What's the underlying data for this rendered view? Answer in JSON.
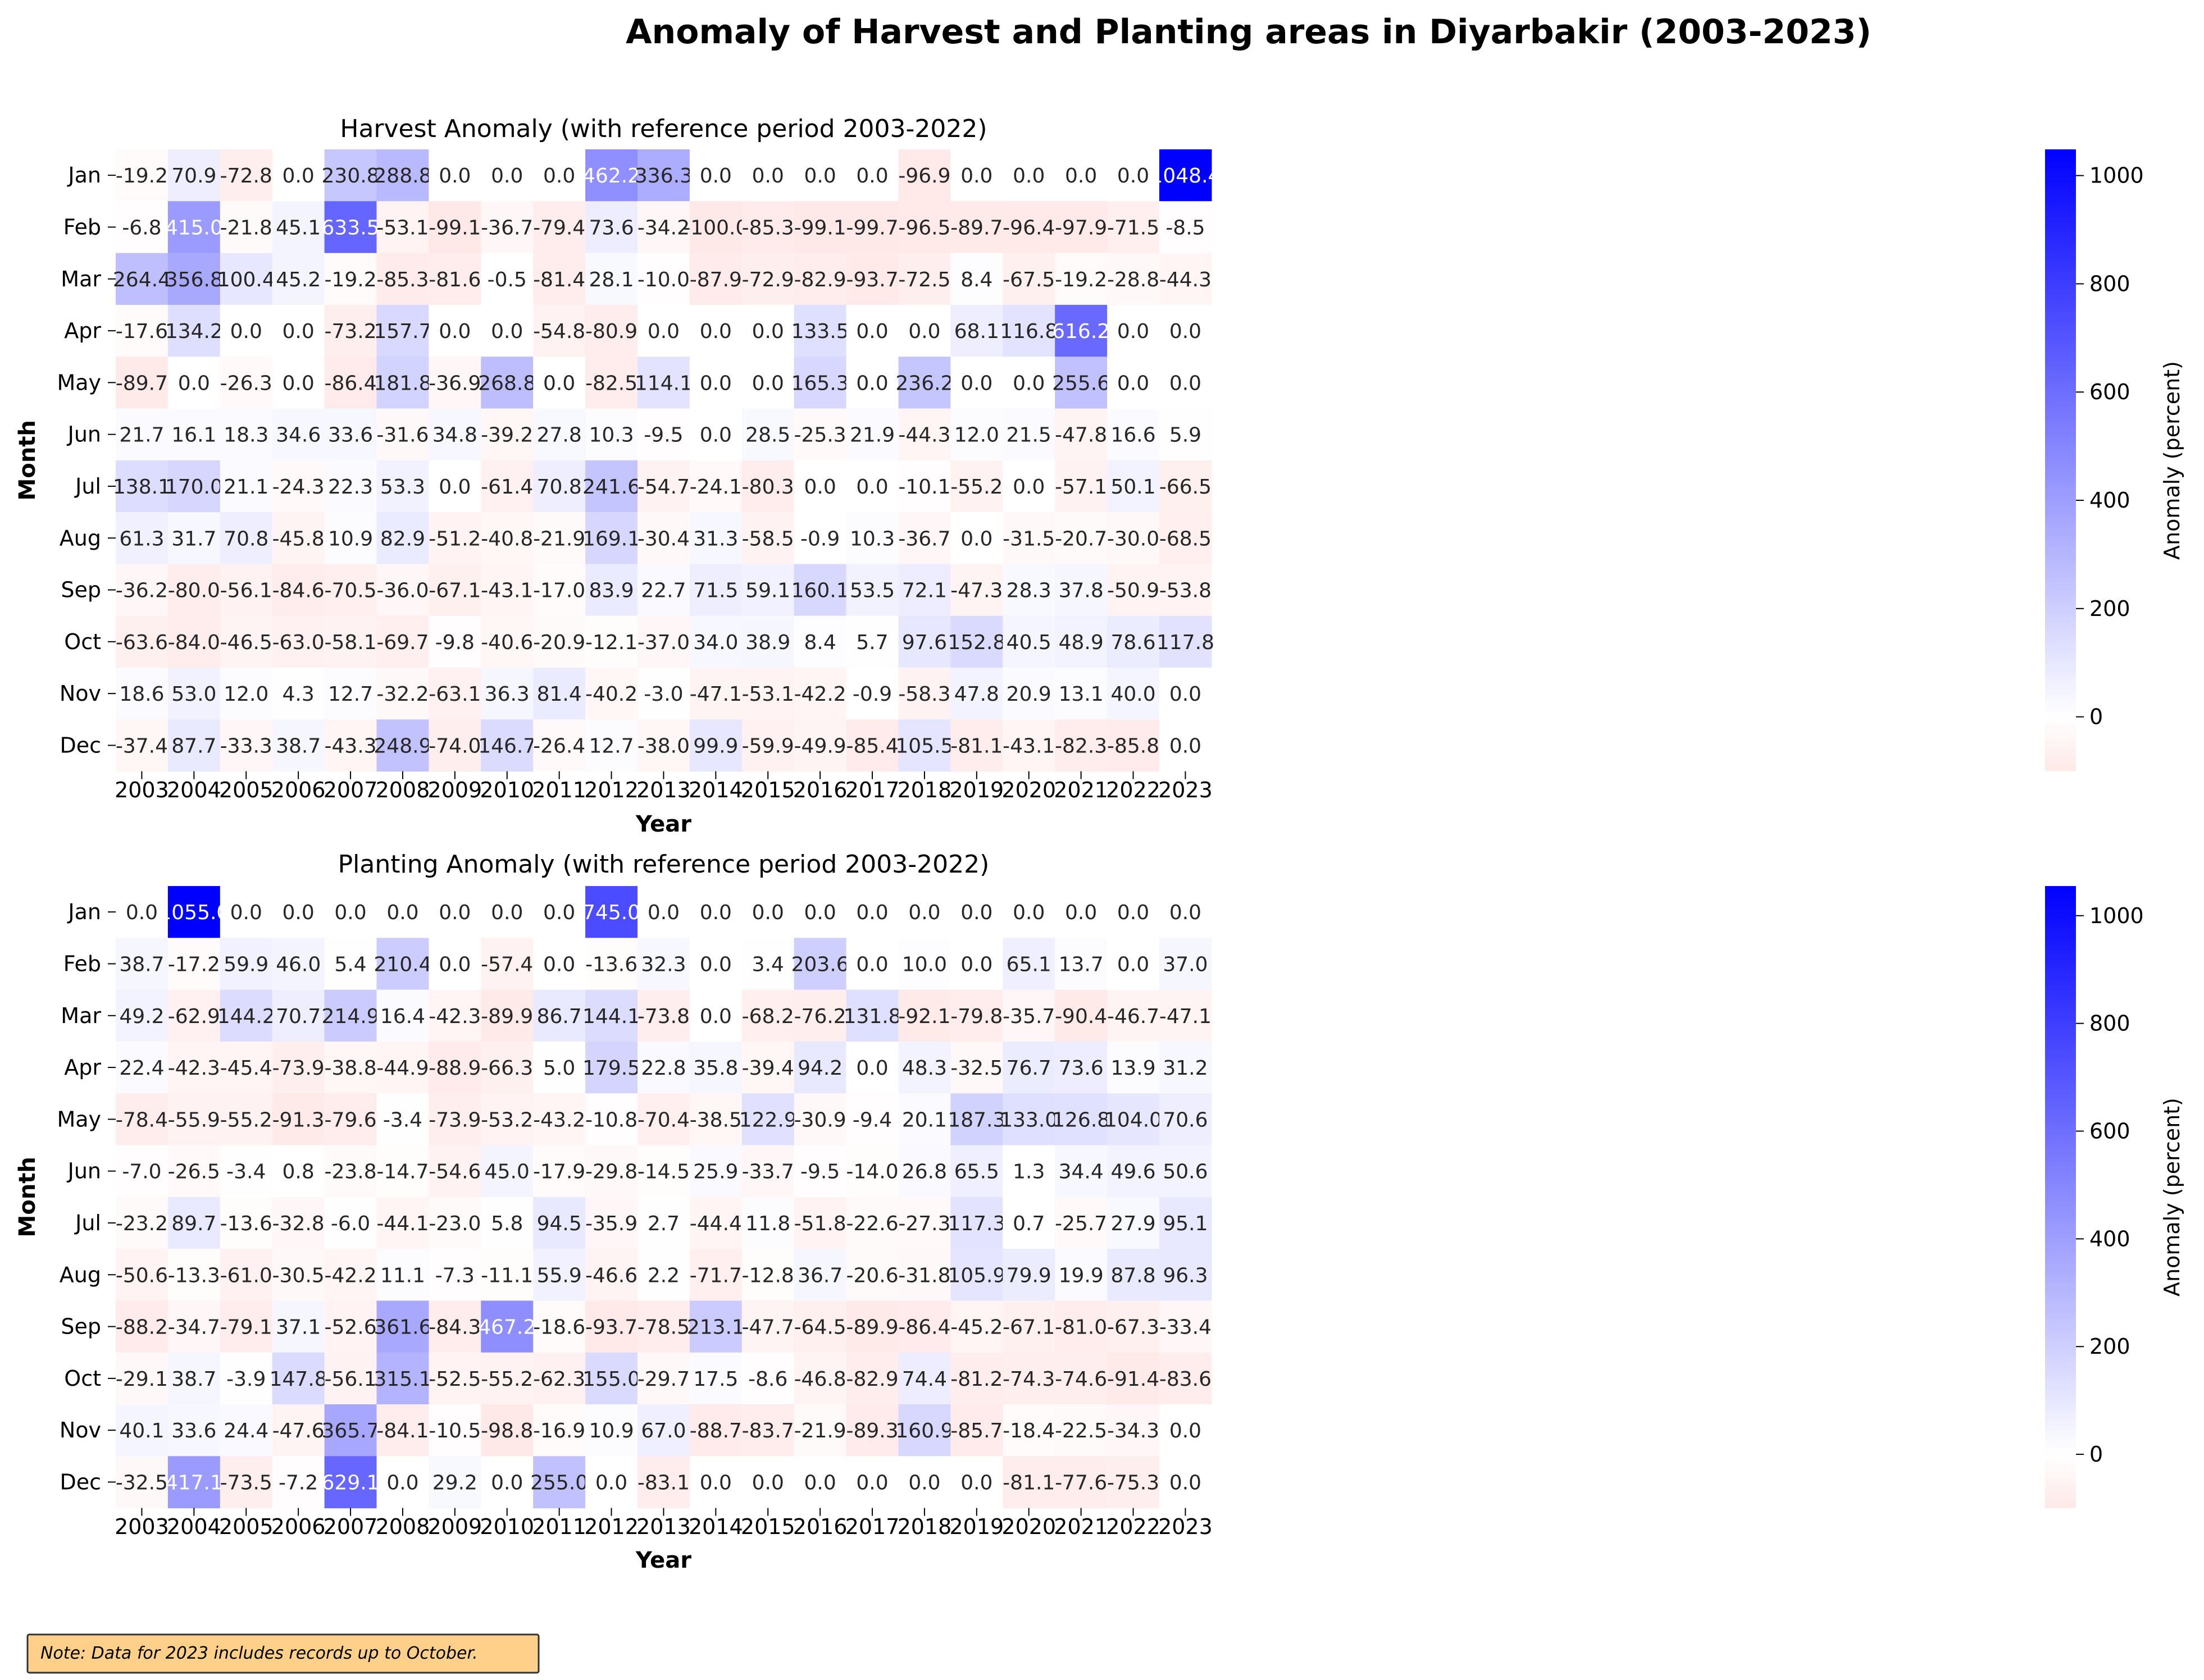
{
  "title": "Anomaly of Harvest and Planting areas in Diyarbakir (2003-2023)",
  "note": "Note: Data for 2023 includes records up to October.",
  "colors": {
    "negative": "#ff0000",
    "neutral": "#ffffff",
    "positive": "#0000ff",
    "note_bg": "#ffd089",
    "note_border": "#333333"
  },
  "chart_data": [
    {
      "type": "heatmap",
      "title": "Harvest Anomaly (with reference period 2003-2022)",
      "xlabel": "Year",
      "ylabel": "Month",
      "colorbar_label": "Anomaly (percent)",
      "colorbar_ticks": [
        0,
        200,
        400,
        600,
        800,
        1000
      ],
      "vmin": -100,
      "vmax": 1048.4,
      "x": [
        "2003",
        "2004",
        "2005",
        "2006",
        "2007",
        "2008",
        "2009",
        "2010",
        "2011",
        "2012",
        "2013",
        "2014",
        "2015",
        "2016",
        "2017",
        "2018",
        "2019",
        "2020",
        "2021",
        "2022",
        "2023"
      ],
      "y": [
        "Jan",
        "Feb",
        "Mar",
        "Apr",
        "May",
        "Jun",
        "Jul",
        "Aug",
        "Sep",
        "Oct",
        "Nov",
        "Dec"
      ],
      "values": [
        [
          "-19.2",
          "70.9",
          "-72.8",
          "0.0",
          "230.8",
          "288.8",
          "0.0",
          "0.0",
          "0.0",
          "462.2",
          "336.3",
          "0.0",
          "0.0",
          "0.0",
          "0.0",
          "-96.9",
          "0.0",
          "0.0",
          "0.0",
          "0.0",
          "1048.4"
        ],
        [
          "-6.8",
          "415.0",
          "-21.8",
          "45.1",
          "633.5",
          "-53.1",
          "-99.1",
          "-36.7",
          "-79.4",
          "73.6",
          "-34.2",
          "-100.0",
          "-85.3",
          "-99.1",
          "-99.7",
          "-96.5",
          "-89.7",
          "-96.4",
          "-97.9",
          "-71.5",
          "-8.5"
        ],
        [
          "264.4",
          "356.8",
          "100.4",
          "45.2",
          "-19.2",
          "-85.3",
          "-81.6",
          "-0.5",
          "-81.4",
          "28.1",
          "-10.0",
          "-87.9",
          "-72.9",
          "-82.9",
          "-93.7",
          "-72.5",
          "8.4",
          "-67.5",
          "-19.2",
          "-28.8",
          "-44.3"
        ],
        [
          "-17.6",
          "134.2",
          "0.0",
          "0.0",
          "-73.2",
          "157.7",
          "0.0",
          "0.0",
          "-54.8",
          "-80.9",
          "0.0",
          "0.0",
          "0.0",
          "133.5",
          "0.0",
          "0.0",
          "68.1",
          "116.8",
          "616.2",
          "0.0",
          "0.0"
        ],
        [
          "-89.7",
          "0.0",
          "-26.3",
          "0.0",
          "-86.4",
          "181.8",
          "-36.9",
          "268.8",
          "0.0",
          "-82.5",
          "114.1",
          "0.0",
          "0.0",
          "165.3",
          "0.0",
          "236.2",
          "0.0",
          "0.0",
          "255.6",
          "0.0",
          "0.0"
        ],
        [
          "21.7",
          "16.1",
          "18.3",
          "34.6",
          "33.6",
          "-31.6",
          "34.8",
          "-39.2",
          "27.8",
          "10.3",
          "-9.5",
          "0.0",
          "28.5",
          "-25.3",
          "21.9",
          "-44.3",
          "12.0",
          "21.5",
          "-47.8",
          "16.6",
          "5.9"
        ],
        [
          "138.1",
          "170.0",
          "21.1",
          "-24.3",
          "22.3",
          "53.3",
          "0.0",
          "-61.4",
          "70.8",
          "241.6",
          "-54.7",
          "-24.1",
          "-80.3",
          "0.0",
          "0.0",
          "-10.1",
          "-55.2",
          "0.0",
          "-57.1",
          "50.1",
          "-66.5"
        ],
        [
          "61.3",
          "31.7",
          "70.8",
          "-45.8",
          "10.9",
          "82.9",
          "-51.2",
          "-40.8",
          "-21.9",
          "169.1",
          "-30.4",
          "31.3",
          "-58.5",
          "-0.9",
          "10.3",
          "-36.7",
          "0.0",
          "-31.5",
          "-20.7",
          "-30.0",
          "-68.5"
        ],
        [
          "-36.2",
          "-80.0",
          "-56.1",
          "-84.6",
          "-70.5",
          "-36.0",
          "-67.1",
          "-43.1",
          "-17.0",
          "83.9",
          "22.7",
          "71.5",
          "59.1",
          "160.1",
          "53.5",
          "72.1",
          "-47.3",
          "28.3",
          "37.8",
          "-50.9",
          "-53.8"
        ],
        [
          "-63.6",
          "-84.0",
          "-46.5",
          "-63.0",
          "-58.1",
          "-69.7",
          "-9.8",
          "-40.6",
          "-20.9",
          "-12.1",
          "-37.0",
          "34.0",
          "38.9",
          "8.4",
          "5.7",
          "97.6",
          "152.8",
          "40.5",
          "48.9",
          "78.6",
          "117.8"
        ],
        [
          "18.6",
          "53.0",
          "12.0",
          "4.3",
          "12.7",
          "-32.2",
          "-63.1",
          "36.3",
          "81.4",
          "-40.2",
          "-3.0",
          "-47.1",
          "-53.1",
          "-42.2",
          "-0.9",
          "-58.3",
          "47.8",
          "20.9",
          "13.1",
          "40.0",
          "0.0"
        ],
        [
          "-37.4",
          "87.7",
          "-33.3",
          "38.7",
          "-43.3",
          "248.9",
          "-74.0",
          "146.7",
          "-26.4",
          "12.7",
          "-38.0",
          "99.9",
          "-59.9",
          "-49.9",
          "-85.4",
          "105.5",
          "-81.1",
          "-43.1",
          "-82.3",
          "-85.8",
          "0.0"
        ]
      ]
    },
    {
      "type": "heatmap",
      "title": "Planting Anomaly (with reference period 2003-2022)",
      "xlabel": "Year",
      "ylabel": "Month",
      "colorbar_label": "Anomaly (percent)",
      "colorbar_ticks": [
        0,
        200,
        400,
        600,
        800,
        1000
      ],
      "vmin": -100,
      "vmax": 1055.0,
      "x": [
        "2003",
        "2004",
        "2005",
        "2006",
        "2007",
        "2008",
        "2009",
        "2010",
        "2011",
        "2012",
        "2013",
        "2014",
        "2015",
        "2016",
        "2017",
        "2018",
        "2019",
        "2020",
        "2021",
        "2022",
        "2023"
      ],
      "y": [
        "Jan",
        "Feb",
        "Mar",
        "Apr",
        "May",
        "Jun",
        "Jul",
        "Aug",
        "Sep",
        "Oct",
        "Nov",
        "Dec"
      ],
      "values": [
        [
          "0.0",
          "1055.0",
          "0.0",
          "0.0",
          "0.0",
          "0.0",
          "0.0",
          "0.0",
          "0.0",
          "745.0",
          "0.0",
          "0.0",
          "0.0",
          "0.0",
          "0.0",
          "0.0",
          "0.0",
          "0.0",
          "0.0",
          "0.0",
          "0.0"
        ],
        [
          "38.7",
          "-17.2",
          "59.9",
          "46.0",
          "5.4",
          "210.4",
          "0.0",
          "-57.4",
          "0.0",
          "-13.6",
          "32.3",
          "0.0",
          "3.4",
          "203.6",
          "0.0",
          "10.0",
          "0.0",
          "65.1",
          "13.7",
          "0.0",
          "37.0"
        ],
        [
          "49.2",
          "-62.9",
          "144.2",
          "70.7",
          "214.9",
          "16.4",
          "-42.3",
          "-89.9",
          "86.7",
          "144.1",
          "-73.8",
          "0.0",
          "-68.2",
          "-76.2",
          "131.8",
          "-92.1",
          "-79.8",
          "-35.7",
          "-90.4",
          "-46.7",
          "-47.1"
        ],
        [
          "22.4",
          "-42.3",
          "-45.4",
          "-73.9",
          "-38.8",
          "-44.9",
          "-88.9",
          "-66.3",
          "5.0",
          "179.5",
          "22.8",
          "35.8",
          "-39.4",
          "94.2",
          "0.0",
          "48.3",
          "-32.5",
          "76.7",
          "73.6",
          "13.9",
          "31.2"
        ],
        [
          "-78.4",
          "-55.9",
          "-55.2",
          "-91.3",
          "-79.6",
          "-3.4",
          "-73.9",
          "-53.2",
          "-43.2",
          "-10.8",
          "-70.4",
          "-38.5",
          "122.9",
          "-30.9",
          "-9.4",
          "20.1",
          "187.3",
          "133.0",
          "126.8",
          "104.0",
          "70.6"
        ],
        [
          "-7.0",
          "-26.5",
          "-3.4",
          "0.8",
          "-23.8",
          "-14.7",
          "-54.6",
          "45.0",
          "-17.9",
          "-29.8",
          "-14.5",
          "25.9",
          "-33.7",
          "-9.5",
          "-14.0",
          "26.8",
          "65.5",
          "1.3",
          "34.4",
          "49.6",
          "50.6"
        ],
        [
          "-23.2",
          "89.7",
          "-13.6",
          "-32.8",
          "-6.0",
          "-44.1",
          "-23.0",
          "5.8",
          "94.5",
          "-35.9",
          "2.7",
          "-44.4",
          "11.8",
          "-51.8",
          "-22.6",
          "-27.3",
          "117.3",
          "0.7",
          "-25.7",
          "27.9",
          "95.1"
        ],
        [
          "-50.6",
          "-13.3",
          "-61.0",
          "-30.5",
          "-42.2",
          "11.1",
          "-7.3",
          "-11.1",
          "55.9",
          "-46.6",
          "2.2",
          "-71.7",
          "-12.8",
          "36.7",
          "-20.6",
          "-31.8",
          "105.9",
          "79.9",
          "19.9",
          "87.8",
          "96.3"
        ],
        [
          "-88.2",
          "-34.7",
          "-79.1",
          "37.1",
          "-52.6",
          "361.6",
          "-84.3",
          "467.2",
          "-18.6",
          "-93.7",
          "-78.5",
          "213.1",
          "-47.7",
          "-64.5",
          "-89.9",
          "-86.4",
          "-45.2",
          "-67.1",
          "-81.0",
          "-67.3",
          "-33.4"
        ],
        [
          "-29.1",
          "38.7",
          "-3.9",
          "147.8",
          "-56.1",
          "315.1",
          "-52.5",
          "-55.2",
          "-62.3",
          "155.0",
          "-29.7",
          "17.5",
          "-8.6",
          "-46.8",
          "-82.9",
          "74.4",
          "-81.2",
          "-74.3",
          "-74.6",
          "-91.4",
          "-83.6"
        ],
        [
          "40.1",
          "33.6",
          "24.4",
          "-47.6",
          "365.7",
          "-84.1",
          "-10.5",
          "-98.8",
          "-16.9",
          "10.9",
          "67.0",
          "-88.7",
          "-83.7",
          "-21.9",
          "-89.3",
          "160.9",
          "-85.7",
          "-18.4",
          "-22.5",
          "-34.3",
          "0.0"
        ],
        [
          "-32.5",
          "417.1",
          "-73.5",
          "-7.2",
          "629.1",
          "0.0",
          "29.2",
          "0.0",
          "255.0",
          "0.0",
          "-83.1",
          "0.0",
          "0.0",
          "0.0",
          "0.0",
          "0.0",
          "0.0",
          "-81.1",
          "-77.6",
          "-75.3",
          "0.0"
        ]
      ]
    }
  ]
}
